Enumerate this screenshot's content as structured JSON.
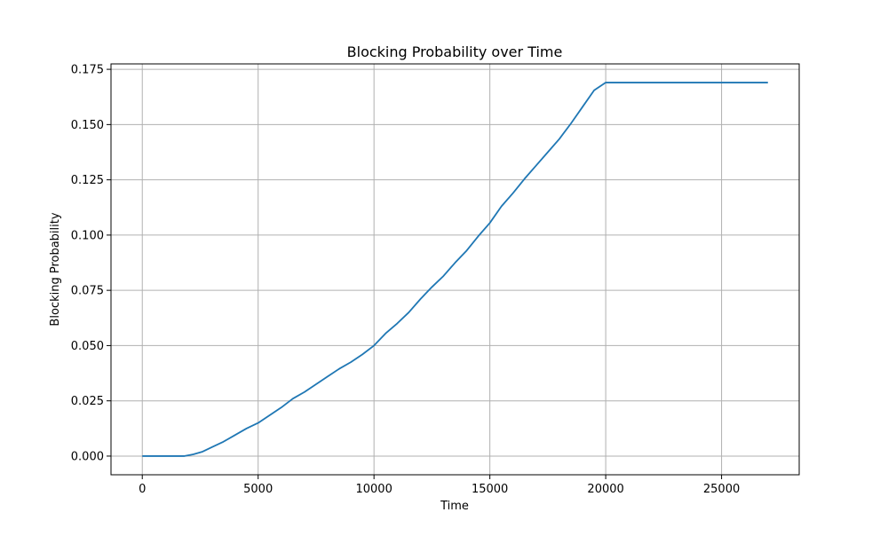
{
  "chart_data": {
    "type": "line",
    "title": "Blocking Probability over Time",
    "xlabel": "Time",
    "ylabel": "Blocking Probability",
    "xlim": [
      -1350,
      28350
    ],
    "ylim": [
      -0.00845,
      0.17745
    ],
    "xticks": [
      0,
      5000,
      10000,
      15000,
      20000,
      25000
    ],
    "xtick_labels": [
      "0",
      "5000",
      "10000",
      "15000",
      "20000",
      "25000"
    ],
    "yticks": [
      0.0,
      0.025,
      0.05,
      0.075,
      0.1,
      0.125,
      0.15,
      0.175
    ],
    "ytick_labels": [
      "0.000",
      "0.025",
      "0.050",
      "0.075",
      "0.100",
      "0.125",
      "0.150",
      "0.175"
    ],
    "grid": true,
    "legend": false,
    "colors": {
      "line": "#1f77b4",
      "grid": "#b0b0b0",
      "axes": "#000000"
    },
    "series": [
      {
        "x": [
          0,
          1000,
          1800,
          2200,
          2600,
          3000,
          3500,
          4000,
          4500,
          5000,
          5500,
          6000,
          6500,
          7000,
          7500,
          8000,
          8500,
          9000,
          9500,
          10000,
          10500,
          11000,
          11500,
          12000,
          12500,
          13000,
          13500,
          14000,
          14500,
          15000,
          15500,
          16000,
          16500,
          17000,
          17500,
          18000,
          18500,
          19000,
          19500,
          20000,
          21000,
          22000,
          23000,
          24000,
          25000,
          26000,
          27000
        ],
        "y": [
          0.0,
          0.0,
          0.0,
          0.0008,
          0.002,
          0.004,
          0.0065,
          0.0095,
          0.0125,
          0.015,
          0.0185,
          0.022,
          0.026,
          0.029,
          0.0325,
          0.036,
          0.0395,
          0.0425,
          0.046,
          0.05,
          0.0555,
          0.06,
          0.065,
          0.071,
          0.0765,
          0.0815,
          0.0875,
          0.093,
          0.0995,
          0.1055,
          0.113,
          0.119,
          0.1255,
          0.1315,
          0.1375,
          0.1435,
          0.1505,
          0.158,
          0.1655,
          0.169,
          0.169,
          0.169,
          0.169,
          0.169,
          0.169,
          0.169,
          0.169
        ]
      }
    ]
  }
}
